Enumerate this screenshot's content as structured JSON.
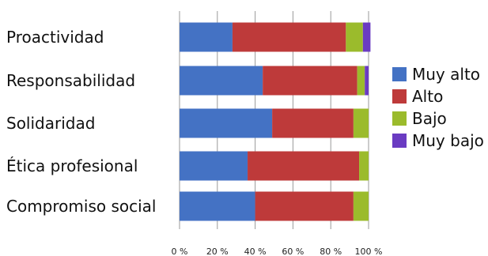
{
  "chart_data": {
    "type": "bar",
    "orientation": "horizontal",
    "stacked": true,
    "percent": true,
    "categories": [
      "Proactividad",
      "Responsabilidad",
      "Solidaridad",
      "Ética profesional",
      "Compromiso social"
    ],
    "series": [
      {
        "name": "Muy alto",
        "color": "#4472C4",
        "values": [
          28,
          44,
          49,
          36,
          40
        ]
      },
      {
        "name": "Alto",
        "color": "#BE3A3A",
        "values": [
          60,
          50,
          43,
          59,
          52
        ]
      },
      {
        "name": "Bajo",
        "color": "#9BBB2C",
        "values": [
          9,
          4,
          8,
          5,
          8
        ]
      },
      {
        "name": "Muy bajo",
        "color": "#6A3BC2",
        "values": [
          4,
          2,
          0,
          0,
          0
        ]
      }
    ],
    "xlim": [
      0,
      100
    ],
    "xticks": [
      "0 %",
      "20 %",
      "40 %",
      "60 %",
      "80 %",
      "100 %"
    ],
    "grid": true,
    "legend_position": "right"
  }
}
